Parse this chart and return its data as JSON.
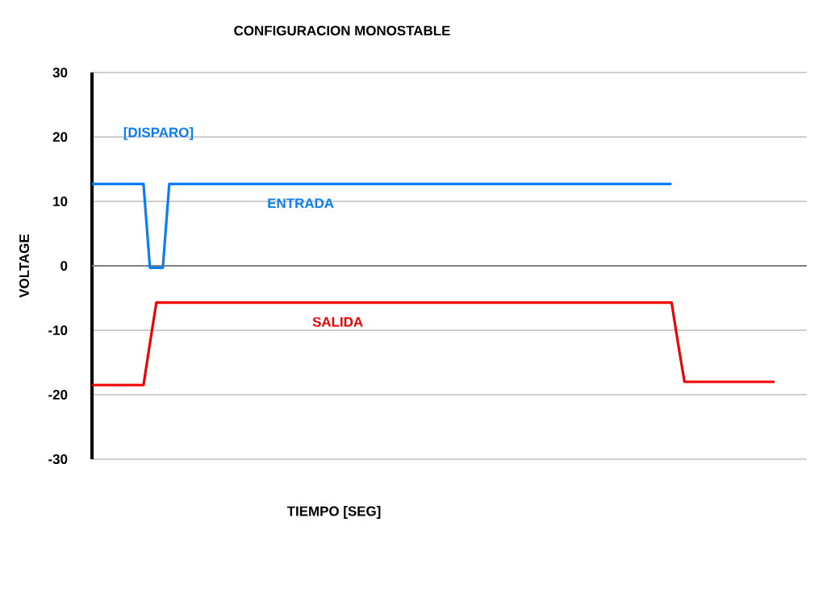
{
  "chart_data": {
    "type": "line",
    "title": "CONFIGURACION MONOSTABLE",
    "xlabel": "TIEMPO [SEG]",
    "ylabel": "VOLTAGE",
    "categories": [
      null,
      null,
      null,
      null,
      null,
      null,
      null,
      null,
      null,
      null,
      null,
      null,
      null,
      null,
      null,
      null,
      null,
      null,
      null,
      null,
      null,
      null,
      null,
      null,
      null,
      null,
      null,
      null,
      null,
      null,
      null,
      null,
      null,
      null,
      null,
      null,
      null,
      null,
      null,
      null,
      null,
      null,
      null,
      null,
      null,
      null,
      null,
      null,
      null,
      null,
      null,
      null,
      null,
      null,
      null,
      null,
      null,
      null,
      null,
      null,
      null,
      null,
      null,
      null,
      null,
      null,
      null,
      null,
      null,
      null,
      null,
      null,
      null,
      null,
      null,
      null,
      null,
      null,
      null,
      null,
      null,
      null,
      null,
      null,
      null,
      null,
      null,
      null,
      null,
      null,
      null,
      null,
      null,
      null,
      null,
      null,
      null,
      null,
      null,
      null,
      null,
      null,
      null,
      null,
      null,
      null,
      null,
      null,
      null,
      null,
      null,
      null
    ],
    "ylim": [
      -30,
      30
    ],
    "yticks": [
      -30,
      -20,
      -10,
      0,
      10,
      20,
      30
    ],
    "grid": true,
    "tick_labels": "y",
    "line_style": "solid",
    "ref_lines": [
      {
        "axis": "y",
        "value": 0,
        "color": "#808080"
      }
    ],
    "annotations": [
      "[DISPARO]"
    ],
    "series": [
      {
        "name": "ENTRADA",
        "color": "#0a7cf5",
        "values": [
          12.7,
          12.7,
          12.7,
          12.7,
          12.7,
          12.7,
          12.7,
          12.7,
          12.7,
          -0.3,
          -0.3,
          -0.3,
          12.7,
          12.7,
          12.7,
          12.7,
          12.7,
          12.7,
          12.7,
          12.7,
          12.7,
          12.7,
          12.7,
          12.7,
          12.7,
          12.7,
          12.7,
          12.7,
          12.7,
          12.7,
          12.7,
          12.7,
          12.7,
          12.7,
          12.7,
          12.7,
          12.7,
          12.7,
          12.7,
          12.7,
          12.7,
          12.7,
          12.7,
          12.7,
          12.7,
          12.7,
          12.7,
          12.7,
          12.7,
          12.7,
          12.7,
          12.7,
          12.7,
          12.7,
          12.7,
          12.7,
          12.7,
          12.7,
          12.7,
          12.7,
          12.7,
          12.7,
          12.7,
          12.7,
          12.7,
          12.7,
          12.7,
          12.7,
          12.7,
          12.7,
          12.7,
          12.7,
          12.7,
          12.7,
          12.7,
          12.7,
          12.7,
          12.7,
          12.7,
          12.7,
          12.7,
          12.7,
          12.7,
          12.7,
          12.7,
          12.7,
          12.7,
          12.7,
          12.7,
          12.7,
          12.7,
          null,
          null,
          null,
          null,
          null,
          null,
          null,
          null,
          null,
          null,
          null,
          null,
          null,
          null,
          null,
          null,
          null,
          null,
          null,
          null,
          null
        ]
      },
      {
        "name": "SALIDA",
        "color": "#f00000",
        "values": [
          -18.5,
          -18.5,
          -18.5,
          -18.5,
          -18.5,
          -18.5,
          -18.5,
          -18.5,
          -18.5,
          -12,
          -5.7,
          -5.7,
          -5.7,
          -5.7,
          -5.7,
          -5.7,
          -5.7,
          -5.7,
          -5.7,
          -5.7,
          -5.7,
          -5.7,
          -5.7,
          -5.7,
          -5.7,
          -5.7,
          -5.7,
          -5.7,
          -5.7,
          -5.7,
          -5.7,
          -5.7,
          -5.7,
          -5.7,
          -5.7,
          -5.7,
          -5.7,
          -5.7,
          -5.7,
          -5.7,
          -5.7,
          -5.7,
          -5.7,
          -5.7,
          -5.7,
          -5.7,
          -5.7,
          -5.7,
          -5.7,
          -5.7,
          -5.7,
          -5.7,
          -5.7,
          -5.7,
          -5.7,
          -5.7,
          -5.7,
          -5.7,
          -5.7,
          -5.7,
          -5.7,
          -5.7,
          -5.7,
          -5.7,
          -5.7,
          -5.7,
          -5.7,
          -5.7,
          -5.7,
          -5.7,
          -5.7,
          -5.7,
          -5.7,
          -5.7,
          -5.7,
          -5.7,
          -5.7,
          -5.7,
          -5.7,
          -5.7,
          -5.7,
          -5.7,
          -5.7,
          -5.7,
          -5.7,
          -5.7,
          -5.7,
          -5.7,
          -5.7,
          -5.7,
          -5.7,
          -12,
          -18.0,
          -18.0,
          -18.0,
          -18.0,
          -18.0,
          -18.0,
          -18.0,
          -18.0,
          -18.0,
          -18.0,
          -18.0,
          -18.0,
          -18.0,
          -18.0,
          -18.0,
          null,
          null,
          null,
          null,
          null
        ]
      }
    ]
  }
}
